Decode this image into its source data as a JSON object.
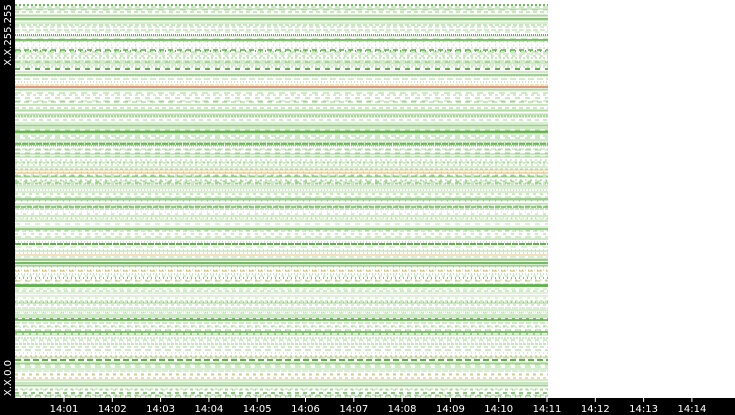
{
  "chart_data": {
    "type": "heatmap",
    "x": [
      "14:01",
      "14:02",
      "14:03",
      "14:04",
      "14:05",
      "14:06",
      "14:07",
      "14:08",
      "14:09",
      "14:10",
      "14:11",
      "14:12",
      "14:13",
      "14:14"
    ],
    "y_top_label": "X.X.255.255",
    "y_bottom_label": "X.X.0.0"
  }
}
